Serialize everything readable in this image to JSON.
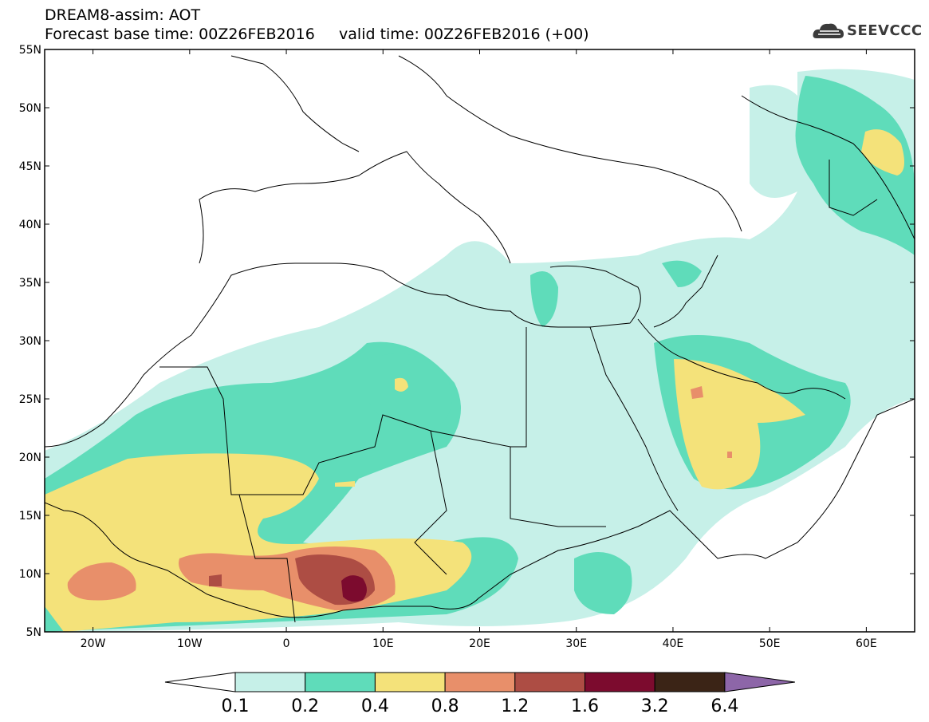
{
  "header": {
    "title_line1": "DREAM8-assim: AOT",
    "title_line2": "Forecast base time: 00Z26FEB2016     valid time: 00Z26FEB2016 (+00)"
  },
  "logo": {
    "text": "SEEVCCC",
    "icon": "cloud-icon"
  },
  "map": {
    "lat_labels": [
      "55N",
      "50N",
      "45N",
      "40N",
      "35N",
      "30N",
      "25N",
      "20N",
      "15N",
      "10N",
      "5N"
    ],
    "lon_labels": [
      "20W",
      "10W",
      "0",
      "10E",
      "20E",
      "30E",
      "40E",
      "50E",
      "60E"
    ],
    "extent": {
      "lon_min": -25,
      "lon_max": 65,
      "lat_min": 5,
      "lat_max": 55
    }
  },
  "colorbar": {
    "labels": [
      "0.1",
      "0.2",
      "0.4",
      "0.8",
      "1.2",
      "1.6",
      "3.2",
      "6.4"
    ],
    "colors": [
      "#c6f0e8",
      "#5fdcba",
      "#f4e27a",
      "#e88f6a",
      "#ad4d44",
      "#7c0b2e",
      "#3b2416",
      "#8d66a8"
    ],
    "under_color": "#ffffff"
  }
}
